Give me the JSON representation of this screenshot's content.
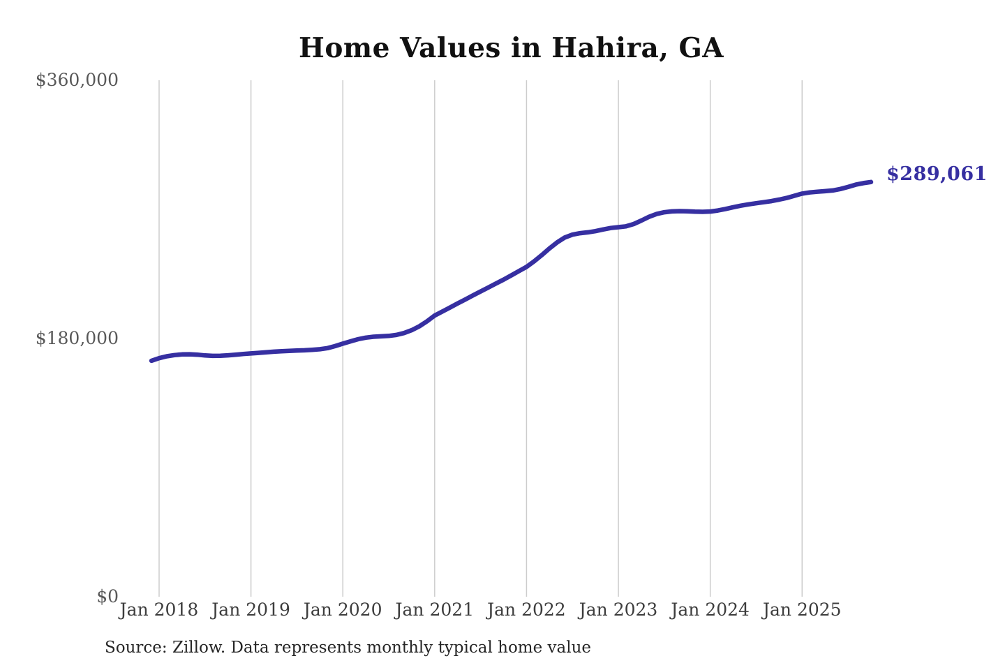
{
  "chart_data": {
    "type": "line",
    "title": "Home Values in Hahira, GA",
    "source": "Source: Zillow. Data represents monthly typical home value",
    "end_label": "$289,061",
    "latest_value": 289061,
    "unit": "USD",
    "frequency": "monthly",
    "x_start": "Dec 2017",
    "x_end": "Oct 2025",
    "grid": "vertical-years-only",
    "legend": "none",
    "y_axis": {
      "min": 0,
      "max": 360000,
      "ticks": [
        {
          "label": "$0",
          "value": 0
        },
        {
          "label": "$180,000",
          "value": 180000
        },
        {
          "label": "$360,000",
          "value": 360000
        }
      ]
    },
    "x_ticks": [
      {
        "label": "Jan 2018",
        "month_index": 1
      },
      {
        "label": "Jan 2019",
        "month_index": 13
      },
      {
        "label": "Jan 2020",
        "month_index": 25
      },
      {
        "label": "Jan 2021",
        "month_index": 37
      },
      {
        "label": "Jan 2022",
        "month_index": 49
      },
      {
        "label": "Jan 2023",
        "month_index": 61
      },
      {
        "label": "Jan 2024",
        "month_index": 73
      },
      {
        "label": "Jan 2025",
        "month_index": 85
      }
    ],
    "values": [
      164500,
      166300,
      167600,
      168400,
      168900,
      169000,
      168700,
      168200,
      167900,
      168000,
      168300,
      168700,
      169200,
      169600,
      170000,
      170400,
      170800,
      171100,
      171400,
      171600,
      171800,
      172100,
      172500,
      173300,
      174700,
      176400,
      178000,
      179500,
      180600,
      181200,
      181500,
      181800,
      182500,
      183800,
      185800,
      188500,
      192000,
      196000,
      198800,
      201600,
      204400,
      207200,
      210000,
      212800,
      215500,
      218300,
      221000,
      224000,
      227000,
      229900,
      233800,
      238200,
      242800,
      247000,
      250400,
      252400,
      253400,
      254000,
      254800,
      256000,
      257000,
      257600,
      258200,
      259800,
      262200,
      264800,
      266800,
      268000,
      268600,
      268800,
      268700,
      268400,
      268300,
      268500,
      269200,
      270300,
      271500,
      272600,
      273500,
      274300,
      275000,
      275800,
      276800,
      278000,
      279500,
      281000,
      281800,
      282300,
      282700,
      283200,
      284200,
      285600,
      287200,
      288300,
      289061
    ],
    "colors": {
      "line": "#362fa1",
      "gridline": "#cccccc",
      "title": "#111111",
      "y_axis_labels": "#585858",
      "x_axis_labels": "#3d3d3d",
      "source": "#262626"
    }
  }
}
